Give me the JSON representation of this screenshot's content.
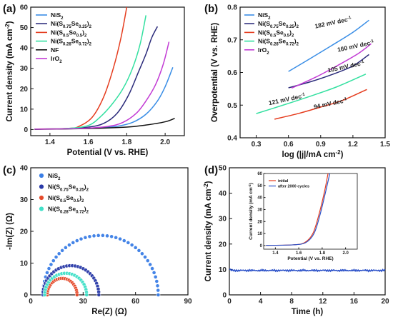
{
  "chart_data": [
    {
      "panel": "(a)",
      "type": "line",
      "xlabel": "Potential (V vs. RHE)",
      "ylabel": "Current density (mA cm-2)",
      "xlim": [
        1.3,
        2.1
      ],
      "ylim": [
        -3,
        60
      ],
      "xticks": [
        "1.4",
        "1.6",
        "1.8",
        "2.0"
      ],
      "yticks": [
        "0",
        "10",
        "20",
        "30",
        "40",
        "50",
        "60"
      ],
      "legend_position": "top-left",
      "series": [
        {
          "name": "NiS2",
          "color": "#3a8ee6",
          "points": [
            [
              1.32,
              0.2
            ],
            [
              1.5,
              0.4
            ],
            [
              1.65,
              0.8
            ],
            [
              1.75,
              1.6
            ],
            [
              1.83,
              3.5
            ],
            [
              1.9,
              7.5
            ],
            [
              1.96,
              14
            ],
            [
              2.0,
              21
            ],
            [
              2.04,
              30.5
            ]
          ]
        },
        {
          "name": "Ni(S0.75Se0.25)2",
          "color": "#2a2a7a",
          "points": [
            [
              1.32,
              0.2
            ],
            [
              1.5,
              0.5
            ],
            [
              1.6,
              1.2
            ],
            [
              1.68,
              3
            ],
            [
              1.75,
              8
            ],
            [
              1.81,
              17
            ],
            [
              1.86,
              28
            ],
            [
              1.9,
              37
            ],
            [
              1.93,
              45
            ],
            [
              1.96,
              50.5
            ]
          ]
        },
        {
          "name": "Ni(S0.5Se0.5)2",
          "color": "#e53c1e",
          "points": [
            [
              1.32,
              0.2
            ],
            [
              1.5,
              0.6
            ],
            [
              1.55,
              1.5
            ],
            [
              1.62,
              6
            ],
            [
              1.68,
              16
            ],
            [
              1.73,
              30
            ],
            [
              1.77,
              45
            ],
            [
              1.8,
              60
            ]
          ]
        },
        {
          "name": "Ni(S0.28Se0.72)2",
          "color": "#33e0a0",
          "points": [
            [
              1.32,
              0.2
            ],
            [
              1.5,
              0.6
            ],
            [
              1.6,
              2
            ],
            [
              1.66,
              6
            ],
            [
              1.72,
              12
            ],
            [
              1.78,
              20
            ],
            [
              1.83,
              30
            ],
            [
              1.87,
              42
            ],
            [
              1.9,
              56
            ]
          ]
        },
        {
          "name": "NF",
          "color": "#111111",
          "points": [
            [
              1.32,
              0.1
            ],
            [
              1.6,
              0.5
            ],
            [
              1.8,
              1.2
            ],
            [
              1.9,
              2.2
            ],
            [
              2.0,
              3.8
            ],
            [
              2.05,
              5.5
            ]
          ]
        },
        {
          "name": "IrO2",
          "color": "#c23bd4",
          "points": [
            [
              1.32,
              0.2
            ],
            [
              1.55,
              0.5
            ],
            [
              1.7,
              1.5
            ],
            [
              1.78,
              3.5
            ],
            [
              1.85,
              8
            ],
            [
              1.9,
              14
            ],
            [
              1.95,
              22
            ],
            [
              1.99,
              32
            ],
            [
              2.02,
              43
            ]
          ]
        }
      ]
    },
    {
      "panel": "(b)",
      "type": "line",
      "xlabel": "log (|j|/mA cm-2)",
      "ylabel": "Overpotential (V vs. RHE)",
      "xlim": [
        0.15,
        1.5
      ],
      "ylim": [
        0.4,
        0.8
      ],
      "xticks": [
        "0.3",
        "0.6",
        "0.9",
        "1.2",
        "1.5"
      ],
      "yticks": [
        "0.4",
        "0.5",
        "0.6",
        "0.7",
        "0.8"
      ],
      "legend_position": "top-left",
      "annotations": [
        "182 mV dec-1",
        "160 mV dec-1",
        "105 mV dec-1",
        "121 mV dec-1",
        "94 mV dec-1"
      ],
      "series": [
        {
          "name": "NiS2",
          "color": "#3a8ee6",
          "points": [
            [
              0.6,
              0.603
            ],
            [
              0.8,
              0.642
            ],
            [
              1.0,
              0.682
            ],
            [
              1.2,
              0.723
            ],
            [
              1.35,
              0.76
            ]
          ]
        },
        {
          "name": "Ni(S0.75Se0.25)2",
          "color": "#2a2a7a",
          "points": [
            [
              0.6,
              0.553
            ],
            [
              0.8,
              0.571
            ],
            [
              1.0,
              0.593
            ],
            [
              1.2,
              0.62
            ],
            [
              1.35,
              0.655
            ]
          ]
        },
        {
          "name": "Ni(S0.5Se0.5)2",
          "color": "#e53c1e",
          "points": [
            [
              0.47,
              0.457
            ],
            [
              0.7,
              0.475
            ],
            [
              0.9,
              0.494
            ],
            [
              1.1,
              0.514
            ],
            [
              1.33,
              0.548
            ]
          ]
        },
        {
          "name": "Ni(S0.28Se0.72)2",
          "color": "#33e0a0",
          "points": [
            [
              0.3,
              0.474
            ],
            [
              0.55,
              0.5
            ],
            [
              0.8,
              0.527
            ],
            [
              1.05,
              0.556
            ],
            [
              1.32,
              0.595
            ]
          ]
        },
        {
          "name": "IrO2",
          "color": "#c23bd4",
          "points": [
            [
              0.63,
              0.552
            ],
            [
              0.85,
              0.585
            ],
            [
              1.05,
              0.62
            ],
            [
              1.25,
              0.658
            ],
            [
              1.37,
              0.688
            ]
          ]
        }
      ]
    },
    {
      "panel": "(c)",
      "type": "scatter",
      "xlabel": "Re(Z) (Ω)",
      "ylabel": "-Im(Z) (Ω)",
      "xlim": [
        0,
        90
      ],
      "ylim": [
        0,
        40
      ],
      "xticks": [
        "0",
        "30",
        "60",
        "90"
      ],
      "yticks": [
        "0",
        "10",
        "20",
        "30",
        "40"
      ],
      "legend_position": "top-left",
      "series": [
        {
          "name": "NiS2",
          "color": "#3a7ee6",
          "center": 40,
          "radius": 33,
          "amplitude": 18.7,
          "n": 42
        },
        {
          "name": "Ni(S0.75Se0.25)2",
          "color": "#2a3aa8",
          "center": 23,
          "radius": 16,
          "amplitude": 9.2,
          "n": 32
        },
        {
          "name": "Ni(S0.5Se0.5)2",
          "color": "#e54a2a",
          "center": 18,
          "radius": 8.5,
          "amplitude": 5.2,
          "n": 24
        },
        {
          "name": "Ni(S0.28Se0.72)2",
          "color": "#40e0c8",
          "center": 20,
          "radius": 12,
          "amplitude": 6.8,
          "n": 26
        }
      ]
    },
    {
      "panel": "(d)",
      "type": "line",
      "xlabel": "Time (h)",
      "ylabel": "Current density (mA cm-2)",
      "xlim": [
        0,
        20
      ],
      "ylim": [
        0,
        50
      ],
      "xticks": [
        "0",
        "4",
        "8",
        "12",
        "16",
        "20"
      ],
      "yticks": [
        "0",
        "10",
        "20",
        "30",
        "40",
        "50"
      ],
      "series": [
        {
          "name": "stability",
          "color": "#2a50c8",
          "level": 9.6
        }
      ],
      "inset": {
        "xlabel": "Potential (V vs. RHE)",
        "ylabel": "Current density (mA cm-2)",
        "xlim": [
          1.3,
          2.1
        ],
        "ylim": [
          -3,
          60
        ],
        "xticks": [
          "1.4",
          "1.6",
          "1.8",
          "2.0"
        ],
        "yticks": [
          "0",
          "10",
          "20",
          "30",
          "40",
          "50",
          "60"
        ],
        "series": [
          {
            "name": "initial",
            "color": "#e53c1e",
            "points": [
              [
                1.32,
                0.2
              ],
              [
                1.55,
                0.6
              ],
              [
                1.65,
                2.5
              ],
              [
                1.72,
                10
              ],
              [
                1.77,
                25
              ],
              [
                1.82,
                45
              ],
              [
                1.85,
                60
              ]
            ]
          },
          {
            "name": "after 2000 cycles",
            "color": "#2a50c8",
            "points": [
              [
                1.32,
                0.2
              ],
              [
                1.55,
                0.6
              ],
              [
                1.66,
                2.5
              ],
              [
                1.73,
                10
              ],
              [
                1.78,
                25
              ],
              [
                1.83,
                45
              ],
              [
                1.865,
                60
              ]
            ]
          }
        ]
      }
    }
  ]
}
